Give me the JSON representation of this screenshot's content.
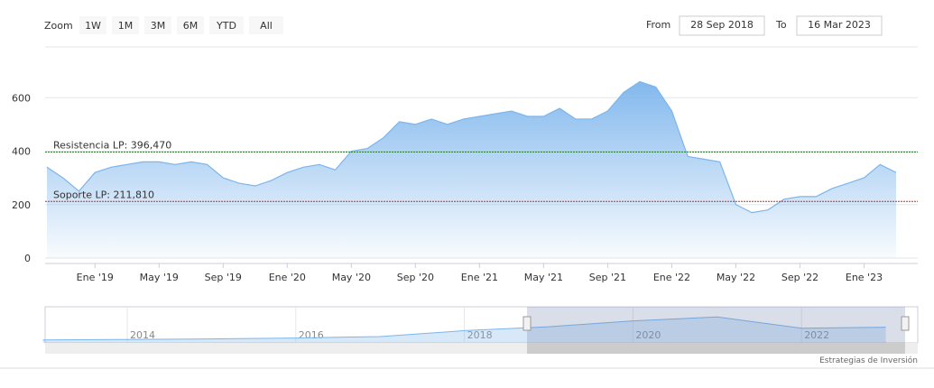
{
  "range_selector": {
    "zoom_label": "Zoom",
    "buttons": [
      "1W",
      "1M",
      "3M",
      "6M",
      "YTD",
      "All"
    ],
    "from_label": "From",
    "from": "28 Sep 2018",
    "to_label": "To",
    "to": "16 Mar 2023"
  },
  "chart_data": {
    "type": "area",
    "x": [
      "2018-10",
      "2018-11",
      "2018-12",
      "2019-01",
      "2019-02",
      "2019-03",
      "2019-04",
      "2019-05",
      "2019-06",
      "2019-07",
      "2019-08",
      "2019-09",
      "2019-10",
      "2019-11",
      "2019-12",
      "2020-01",
      "2020-02",
      "2020-03",
      "2020-04",
      "2020-05",
      "2020-06",
      "2020-07",
      "2020-08",
      "2020-09",
      "2020-10",
      "2020-11",
      "2020-12",
      "2021-01",
      "2021-02",
      "2021-03",
      "2021-04",
      "2021-05",
      "2021-06",
      "2021-07",
      "2021-08",
      "2021-09",
      "2021-10",
      "2021-11",
      "2021-12",
      "2022-01",
      "2022-02",
      "2022-03",
      "2022-04",
      "2022-05",
      "2022-06",
      "2022-07",
      "2022-08",
      "2022-09",
      "2022-10",
      "2022-11",
      "2022-12",
      "2023-01",
      "2023-02",
      "2023-03"
    ],
    "series": [
      {
        "color": "#7cb5ec",
        "values": [
          340,
          300,
          250,
          320,
          340,
          350,
          360,
          360,
          350,
          360,
          350,
          300,
          280,
          270,
          290,
          320,
          340,
          350,
          330,
          400,
          410,
          450,
          510,
          500,
          520,
          500,
          520,
          530,
          540,
          550,
          530,
          530,
          560,
          520,
          520,
          550,
          620,
          660,
          640,
          550,
          380,
          370,
          360,
          200,
          170,
          180,
          220,
          230,
          230,
          260,
          280,
          300,
          350,
          320
        ]
      }
    ],
    "xlim": [
      "2018-10",
      "2023-03"
    ],
    "xticks": [
      {
        "value": "2019-01",
        "label": "Ene '19"
      },
      {
        "value": "2019-05",
        "label": "May '19"
      },
      {
        "value": "2019-09",
        "label": "Sep '19"
      },
      {
        "value": "2020-01",
        "label": "Ene '20"
      },
      {
        "value": "2020-05",
        "label": "May '20"
      },
      {
        "value": "2020-09",
        "label": "Sep '20"
      },
      {
        "value": "2021-01",
        "label": "Ene '21"
      },
      {
        "value": "2021-05",
        "label": "May '21"
      },
      {
        "value": "2021-09",
        "label": "Sep '21"
      },
      {
        "value": "2022-01",
        "label": "Ene '22"
      },
      {
        "value": "2022-05",
        "label": "May '22"
      },
      {
        "value": "2022-09",
        "label": "Sep '22"
      },
      {
        "value": "2023-01",
        "label": "Ene '23"
      }
    ],
    "ylim": [
      0,
      800
    ],
    "yticks": [
      0,
      200,
      400,
      600
    ],
    "grid": true,
    "plot_lines": [
      {
        "value": 396.47,
        "label": "Resistencia LP: 396,470",
        "color": "#2e7d32"
      },
      {
        "value": 211.81,
        "label": "Soporte LP: 211,810",
        "color": "#c62828"
      }
    ],
    "navigator": {
      "x": [
        2013,
        2014,
        2015,
        2016,
        2017,
        2018,
        2019,
        2020,
        2021,
        2022,
        2023
      ],
      "values": [
        60,
        70,
        80,
        100,
        130,
        250,
        330,
        450,
        530,
        300,
        320
      ],
      "xticks": [
        2014,
        2016,
        2018,
        2020,
        2022
      ]
    },
    "credits": "Estrategias de Inversión"
  }
}
